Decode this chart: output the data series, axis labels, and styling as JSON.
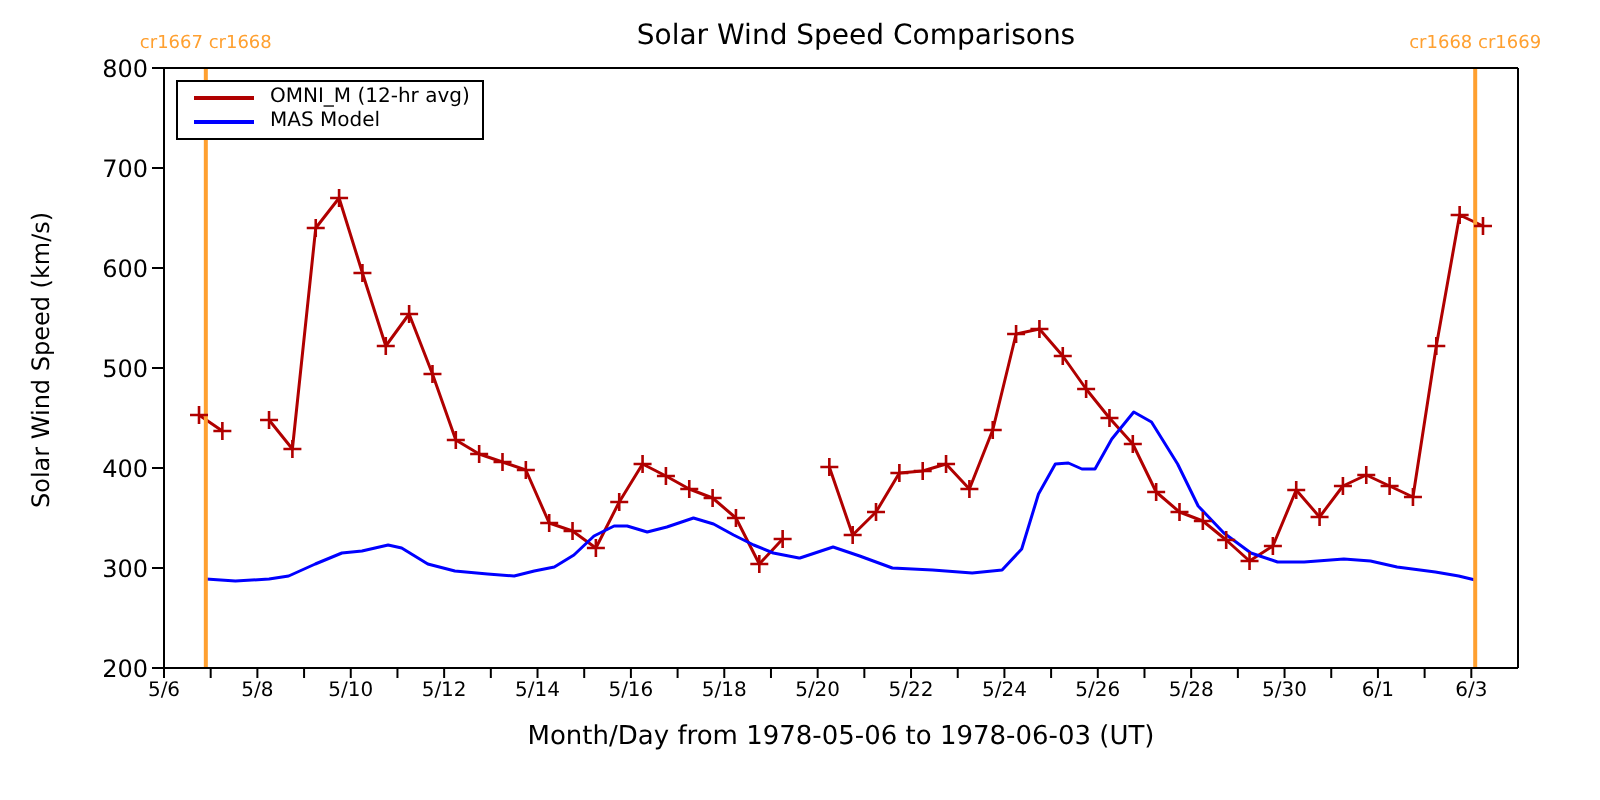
{
  "chart_data": {
    "type": "line",
    "title": "Solar Wind Speed Comparisons",
    "xlabel": "Month/Day from 1978-05-06 to 1978-06-03 (UT)",
    "ylabel": "Solar Wind Speed (km/s)",
    "xlim": [
      "1978-05-06",
      "1978-06-04"
    ],
    "xticks": [
      {
        "value": "1978-05-06",
        "label": "5/6"
      },
      {
        "value": "1978-05-07",
        "label": null
      },
      {
        "value": "1978-05-08",
        "label": "5/8"
      },
      {
        "value": "1978-05-09",
        "label": null
      },
      {
        "value": "1978-05-10",
        "label": "5/10"
      },
      {
        "value": "1978-05-11",
        "label": null
      },
      {
        "value": "1978-05-12",
        "label": "5/12"
      },
      {
        "value": "1978-05-13",
        "label": null
      },
      {
        "value": "1978-05-14",
        "label": "5/14"
      },
      {
        "value": "1978-05-15",
        "label": null
      },
      {
        "value": "1978-05-16",
        "label": "5/16"
      },
      {
        "value": "1978-05-17",
        "label": null
      },
      {
        "value": "1978-05-18",
        "label": "5/18"
      },
      {
        "value": "1978-05-19",
        "label": null
      },
      {
        "value": "1978-05-20",
        "label": "5/20"
      },
      {
        "value": "1978-05-21",
        "label": null
      },
      {
        "value": "1978-05-22",
        "label": "5/22"
      },
      {
        "value": "1978-05-23",
        "label": null
      },
      {
        "value": "1978-05-24",
        "label": "5/24"
      },
      {
        "value": "1978-05-25",
        "label": null
      },
      {
        "value": "1978-05-26",
        "label": "5/26"
      },
      {
        "value": "1978-05-27",
        "label": null
      },
      {
        "value": "1978-05-28",
        "label": "5/28"
      },
      {
        "value": "1978-05-29",
        "label": null
      },
      {
        "value": "1978-05-30",
        "label": "5/30"
      },
      {
        "value": "1978-05-31",
        "label": null
      },
      {
        "value": "1978-06-01",
        "label": "6/1"
      },
      {
        "value": "1978-06-02",
        "label": null
      },
      {
        "value": "1978-06-03",
        "label": "6/3"
      }
    ],
    "ylim": [
      200,
      800
    ],
    "yticks": [
      200,
      300,
      400,
      500,
      600,
      700,
      800
    ],
    "grid": false,
    "legend": "top left",
    "ref_lines": [
      {
        "axis": "x",
        "value": "1978-05-06T21:30",
        "label": "cr1667 cr1668",
        "color": "#ffa030"
      },
      {
        "axis": "x",
        "value": "1978-06-03T02:00",
        "label": "cr1668 cr1669",
        "color": "#ffa030"
      }
    ],
    "series": [
      {
        "name": "OMNI_M (12-hr avg)",
        "color": "#b00000",
        "marker": "cross",
        "x": [
          "1978-05-06T18:00",
          "1978-05-07T06:00",
          "1978-05-07T18:00",
          "1978-05-08T06:00",
          "1978-05-08T18:00",
          "1978-05-09T06:00",
          "1978-05-09T18:00",
          "1978-05-10T06:00",
          "1978-05-10T18:00",
          "1978-05-11T06:00",
          "1978-05-11T18:00",
          "1978-05-12T06:00",
          "1978-05-12T18:00",
          "1978-05-13T06:00",
          "1978-05-13T18:00",
          "1978-05-14T06:00",
          "1978-05-14T18:00",
          "1978-05-15T06:00",
          "1978-05-15T18:00",
          "1978-05-16T06:00",
          "1978-05-16T18:00",
          "1978-05-17T06:00",
          "1978-05-17T18:00",
          "1978-05-18T06:00",
          "1978-05-18T18:00",
          "1978-05-19T06:00",
          "1978-05-19T18:00",
          "1978-05-20T06:00",
          "1978-05-20T18:00",
          "1978-05-21T06:00",
          "1978-05-21T18:00",
          "1978-05-22T06:00",
          "1978-05-22T18:00",
          "1978-05-23T06:00",
          "1978-05-23T18:00",
          "1978-05-24T06:00",
          "1978-05-24T18:00",
          "1978-05-25T06:00",
          "1978-05-25T18:00",
          "1978-05-26T06:00",
          "1978-05-26T18:00",
          "1978-05-27T06:00",
          "1978-05-27T18:00",
          "1978-05-28T06:00",
          "1978-05-28T18:00",
          "1978-05-29T06:00",
          "1978-05-29T18:00",
          "1978-05-30T06:00",
          "1978-05-30T18:00",
          "1978-05-31T06:00",
          "1978-05-31T18:00",
          "1978-06-01T06:00",
          "1978-06-01T18:00",
          "1978-06-02T06:00",
          "1978-06-02T18:00",
          "1978-06-03T06:00"
        ],
        "values": [
          453,
          437,
          null,
          448,
          419,
          640,
          670,
          595,
          522,
          554,
          494,
          428,
          414,
          406,
          398,
          345,
          337,
          320,
          366,
          404,
          392,
          379,
          370,
          350,
          304,
          329,
          null,
          401,
          333,
          356,
          395,
          397,
          404,
          379,
          438,
          534,
          539,
          512,
          479,
          450,
          424,
          376,
          356,
          347,
          328,
          307,
          322,
          378,
          351,
          382,
          393,
          382,
          371,
          522,
          653,
          642
        ]
      },
      {
        "name": "MAS Model",
        "color": "#0000ff",
        "marker": "none",
        "x": [
          "1978-05-06T21:36",
          "1978-05-07T12:43",
          "1978-05-08T06:00",
          "1978-05-08T16:05",
          "1978-05-09T05:46",
          "1978-05-09T19:26",
          "1978-05-10T05:46",
          "1978-05-10T19:12",
          "1978-05-11T02:10",
          "1978-05-11T15:36",
          "1978-05-12T05:31",
          "1978-05-12T22:19",
          "1978-05-13T12:00",
          "1978-05-13T22:19",
          "1978-05-14T08:38",
          "1978-05-14T18:43",
          "1978-05-15T05:02",
          "1978-05-15T15:22",
          "1978-05-15T22:05",
          "1978-05-16T08:24",
          "1978-05-16T18:29",
          "1978-05-17T08:10",
          "1978-05-17T18:29",
          "1978-05-18T04:48",
          "1978-05-18T15:07",
          "1978-05-19T01:12",
          "1978-05-19T14:24",
          "1978-05-19T14:53",
          "1978-05-20T07:55",
          "1978-05-20T21:36",
          "1978-05-21T14:24",
          "1978-05-22T11:02",
          "1978-05-23T07:26",
          "1978-05-23T22:48",
          "1978-05-24T08:53",
          "1978-05-24T17:31",
          "1978-05-25T02:10",
          "1978-05-25T08:53",
          "1978-05-25T15:50",
          "1978-05-25T22:34",
          "1978-05-26T07:12",
          "1978-05-26T18:29",
          "1978-05-27T03:36",
          "1978-05-27T17:02",
          "1978-05-28T03:36",
          "1978-05-28T16:48",
          "1978-05-29T06:43",
          "1978-05-29T20:24",
          "1978-05-30T10:05",
          "1978-05-31T06:29",
          "1978-05-31T20:10",
          "1978-06-01T09:50",
          "1978-06-02T05:31",
          "1978-06-02T17:31",
          "1978-06-03T02:00"
        ],
        "values": [
          289,
          287,
          289,
          292,
          304,
          315,
          317,
          323,
          320,
          304,
          297,
          294,
          292,
          297,
          301,
          313,
          332,
          342,
          342,
          336,
          341,
          350,
          344,
          333,
          323,
          315,
          310,
          310,
          321,
          312,
          300,
          298,
          295,
          298,
          319,
          374,
          404,
          405,
          399,
          399,
          429,
          456,
          446,
          404,
          362,
          335,
          315,
          306,
          306,
          309,
          307,
          301,
          296,
          292,
          288
        ]
      }
    ]
  }
}
